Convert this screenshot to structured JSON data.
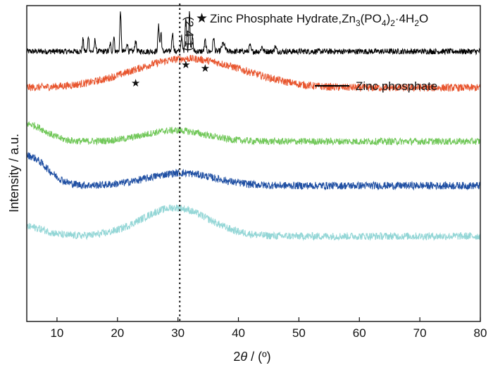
{
  "chart_data": {
    "type": "line",
    "xlabel_prefix": "2",
    "xlabel_theta": "θ",
    "xlabel_suffix": " / (º)",
    "ylabel": "Intensity / a.u.",
    "xlim": [
      5,
      80
    ],
    "x_ticks": [
      10,
      20,
      30,
      40,
      50,
      60,
      70,
      80
    ],
    "y_ticks_shown": false,
    "reference_line": {
      "x": 30.3,
      "label": "(2 4 1)",
      "style": "dotted"
    },
    "star_legend": {
      "prefix": "Zinc Phosphate Hydrate,Zn",
      "sub1": "3",
      "mid1": "(PO",
      "sub2": "4",
      "mid2": ")",
      "sub3": "2",
      "mid3": "·4H",
      "sub4": "2",
      "suffix": "O"
    },
    "star_peaks_x": [
      23.0,
      31.3,
      34.5
    ],
    "series": [
      {
        "name": "Zinc phosphate",
        "color": "#000000",
        "baseline": 0.145,
        "broad": [],
        "peaks": [
          [
            14.3,
            0.04,
            0.1
          ],
          [
            15.2,
            0.05,
            0.1
          ],
          [
            16.3,
            0.04,
            0.1
          ],
          [
            18.8,
            0.025,
            0.1
          ],
          [
            19.4,
            0.05,
            0.1
          ],
          [
            20.5,
            0.13,
            0.1
          ],
          [
            21.6,
            0.03,
            0.1
          ],
          [
            23.0,
            0.035,
            0.12
          ],
          [
            26.8,
            0.08,
            0.12
          ],
          [
            27.2,
            0.06,
            0.1
          ],
          [
            29.1,
            0.06,
            0.12
          ],
          [
            30.6,
            0.045,
            0.12
          ],
          [
            31.3,
            0.11,
            0.12
          ],
          [
            31.9,
            0.13,
            0.1
          ],
          [
            32.4,
            0.05,
            0.1
          ],
          [
            34.5,
            0.035,
            0.12
          ],
          [
            35.9,
            0.045,
            0.12
          ],
          [
            37.5,
            0.025,
            0.25
          ],
          [
            41.9,
            0.02,
            0.12
          ],
          [
            43.9,
            0.015,
            0.15
          ],
          [
            46.1,
            0.015,
            0.15
          ]
        ],
        "noise": 0.009
      },
      {
        "name": "",
        "color": "#e8552e",
        "baseline": 0.26,
        "broad": [
          [
            31,
            0.09,
            8.5
          ],
          [
            42,
            0.01,
            6
          ]
        ],
        "peaks": [],
        "noise": 0.012
      },
      {
        "name": "",
        "color": "#72c85a",
        "baseline": 0.43,
        "broad": [
          [
            29.5,
            0.035,
            5
          ],
          [
            5,
            0.055,
            3
          ]
        ],
        "peaks": [],
        "noise": 0.011
      },
      {
        "name": "",
        "color": "#1f4fa3",
        "baseline": 0.57,
        "broad": [
          [
            30.5,
            0.04,
            5.5
          ],
          [
            5,
            0.095,
            3.2
          ]
        ],
        "peaks": [],
        "noise": 0.012
      },
      {
        "name": "",
        "color": "#93d6d6",
        "baseline": 0.73,
        "broad": [
          [
            29.5,
            0.09,
            5.5
          ],
          [
            5,
            0.03,
            3
          ]
        ],
        "peaks": [],
        "noise": 0.012
      }
    ]
  }
}
